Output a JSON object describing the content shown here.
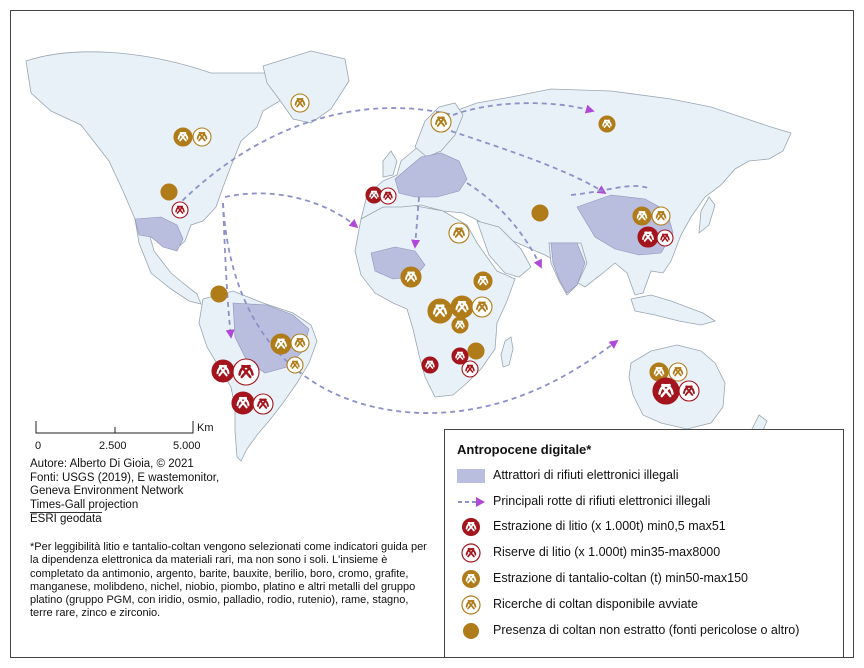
{
  "colors": {
    "ocean": "#ffffff",
    "land": "#e8f1f8",
    "land_border": "#9aa6b2",
    "attractor": "#b9bedf",
    "route": "#8c91c7",
    "arrow": "#b048d8",
    "lithium_red": "#a3141c",
    "coltan_gold": "#b07c1a"
  },
  "scale": {
    "unit": "Km",
    "ticks": [
      "0",
      "2.500",
      "5.000"
    ]
  },
  "credits": {
    "author": "Autore: Alberto Di Gioia, © 2021",
    "sources_1": "Fonti: USGS (2019), E wastemonitor,",
    "sources_2": "Geneva Environment Network",
    "projection": "Times-Gall projection",
    "geodata": "ESRI geodata"
  },
  "note": "*Per leggibilità litio e tantalio-coltan vengono selezionati come indicatori guida per la dipendenza elettronica da materiali rari, ma non sono i soli. L'insieme è completato da antimonio, argento, barite, bauxite, berilio, boro, cromo, grafite, manganese, molibdeno, nichel, niobio, piombo, platino e altri metalli del gruppo platino (gruppo PGM, con iridio, osmio, palladio, rodio, rutenio), rame, stagno, terre rare, zinco e zirconio.",
  "legend": {
    "title": "Antropocene digitale*",
    "items": [
      {
        "label": "Attrattori di rifiuti elettronici illegali",
        "icon": "attractor-swatch"
      },
      {
        "label": "Principali rotte di rifiuti elettronici illegali",
        "icon": "route-arrow"
      },
      {
        "label": "Estrazione di litio (x 1.000t) min0,5 max51",
        "icon": "pickaxe-filled-red"
      },
      {
        "label": "Riserve di litio (x 1.000t) min35-max8000",
        "icon": "pickaxe-outline-red"
      },
      {
        "label": "Estrazione di tantalio-coltan (t) min50-max150",
        "icon": "pickaxe-filled-gold"
      },
      {
        "label": "Ricerche di coltan disponibile avviate",
        "icon": "pickaxe-outline-gold"
      },
      {
        "label": "Presenza di coltan non estratto (fonti pericolose o altro)",
        "icon": "dot-gold"
      }
    ]
  }
}
